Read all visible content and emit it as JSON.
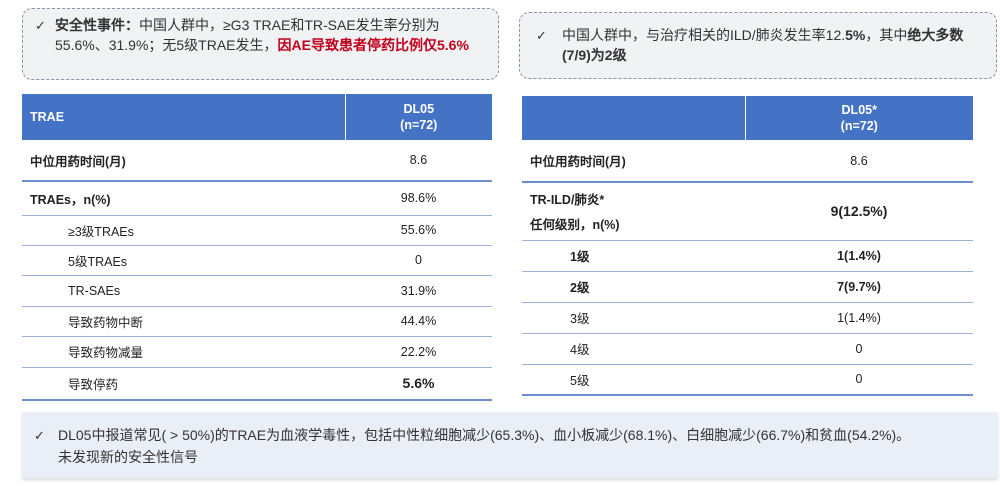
{
  "callout_left": {
    "bold_prefix": "安全性事件：",
    "text_plain": "中国人群中，≥G3 TRAE和TR-SAE发生率分别为55.6%、31.9%；无5级TRAE发生，",
    "text_red": "因AE导致患者停药比例仅5.6%"
  },
  "callout_right": {
    "text_plain": "中国人群中，与治疗相关的ILD/肺炎发生率12.",
    "text_bold_num": "5%",
    "text_mid": "，其中",
    "text_bold": "绝大多数(7/9)为2级"
  },
  "trae_table": {
    "header_col1": "TRAE",
    "header_col2_line1": "DL05",
    "header_col2_line2": "(n=72)",
    "rows": [
      {
        "label": "中位用药时间(月)",
        "value": "8.6"
      },
      {
        "label": "TRAEs，n(%)",
        "value": "98.6%"
      },
      {
        "label": "≥3级TRAEs",
        "value": "55.6%"
      },
      {
        "label": "5级TRAEs",
        "value": "0"
      },
      {
        "label": "TR-SAEs",
        "value": "31.9%"
      },
      {
        "label": "导致药物中断",
        "value": "44.4%"
      },
      {
        "label": "导致药物减量",
        "value": "22.2%"
      },
      {
        "label": "导致停药",
        "value": "5.6%"
      }
    ]
  },
  "ild_table": {
    "header_col1": "",
    "header_col2_line1": "DL05*",
    "header_col2_line2": "(n=72)",
    "rows": [
      {
        "label": "中位用药时间(月)",
        "value": "8.6"
      },
      {
        "label_line1": "TR-ILD/肺炎*",
        "label_line2": "任何级别，n(%)",
        "value": "9(12.5%)"
      },
      {
        "label": "1级",
        "value": "1(1.4%)"
      },
      {
        "label": "2级",
        "value": "7(9.7%)"
      },
      {
        "label": "3级",
        "value": "1(1.4%)"
      },
      {
        "label": "4级",
        "value": "0"
      },
      {
        "label": "5级",
        "value": "0"
      }
    ]
  },
  "bottom_bar": {
    "line1": "DL05中报道常见( > 50%)的TRAE为血液学毒性，包括中性粒细胞减少(65.3%)、血小板减少(68.1%)、白细胞减少(66.7%)和贫血(54.2%)。",
    "line2": "未发现新的安全性信号"
  },
  "check_glyph": "✓"
}
